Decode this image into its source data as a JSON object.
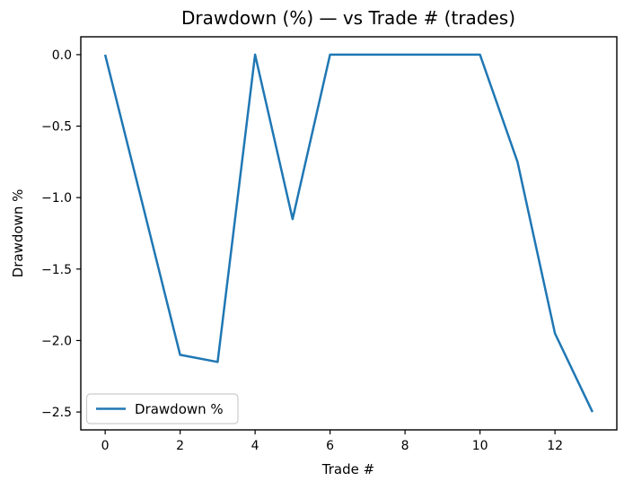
{
  "chart_data": {
    "type": "line",
    "title": "Drawdown (%) — vs Trade # (trades)",
    "xlabel": "Trade #",
    "ylabel": "Drawdown %",
    "x": [
      0,
      1,
      2,
      3,
      4,
      5,
      6,
      7,
      8,
      9,
      10,
      11,
      12,
      13
    ],
    "series": [
      {
        "name": "Drawdown %",
        "color": "#1f77b4",
        "values": [
          0.0,
          -1.05,
          -2.1,
          -2.15,
          0.0,
          -1.15,
          0.0,
          0.0,
          0.0,
          0.0,
          0.0,
          -0.75,
          -1.95,
          -2.5
        ]
      }
    ],
    "xlim": [
      -0.65,
      13.65
    ],
    "ylim": [
      -2.625,
      0.125
    ],
    "xticks": [
      0,
      2,
      4,
      6,
      8,
      10,
      12
    ],
    "yticks": [
      0.0,
      -0.5,
      -1.0,
      -1.5,
      -2.0,
      -2.5
    ],
    "legend": {
      "label": "Drawdown %",
      "position": "lower left"
    },
    "grid": false,
    "colors": {
      "line": "#1f77b4",
      "text": "#000000",
      "legend_edge": "#cccccc",
      "background": "#ffffff"
    }
  }
}
